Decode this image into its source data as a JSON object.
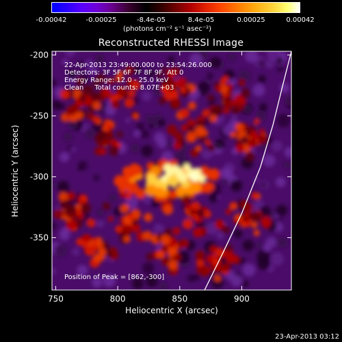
{
  "colorbar": {
    "ticks": [
      "-0.00042",
      "-0.00025",
      "-8.4e-05",
      "8.4e-05",
      "0.00025",
      "0.00042"
    ],
    "units": "(photons cm⁻² s⁻¹ asec⁻²)"
  },
  "title": "Reconstructed RHESSI Image",
  "annotations": {
    "time_range": "22-Apr-2013 23:49:00.000 to 23:54:26.000",
    "detectors": "Detectors: 3F 5F 6F 7F 8F 9F, Att 0",
    "energy": "Energy Range: 12.0 - 25.0 keV",
    "method": "Clean     Total counts: 8.07E+03",
    "peak": "Position of Peak = [862,-300]"
  },
  "timestamp": "23-Apr-2013 03:12",
  "chart_data": {
    "type": "heatmap",
    "title": "Reconstructed RHESSI Image",
    "xlabel": "Heliocentric X (arcsec)",
    "ylabel": "Heliocentric Y (arcsec)",
    "xlim": [
      747,
      940
    ],
    "ylim": [
      -393,
      -197
    ],
    "x_ticks": [
      "750",
      "800",
      "850",
      "900"
    ],
    "x_tick_values": [
      750,
      800,
      850,
      900
    ],
    "y_ticks": [
      "-200",
      "-250",
      "-300",
      "-350"
    ],
    "y_tick_values": [
      -200,
      -250,
      -300,
      -350
    ],
    "color_range": [
      -0.00042,
      0.00042
    ],
    "peak": [
      862,
      -300
    ],
    "limb_curve": [
      [
        870,
        -393
      ],
      [
        885,
        -362
      ],
      [
        900,
        -330
      ],
      [
        915,
        -292
      ],
      [
        925,
        -258
      ],
      [
        933,
        -225
      ],
      [
        940,
        -197
      ]
    ]
  }
}
